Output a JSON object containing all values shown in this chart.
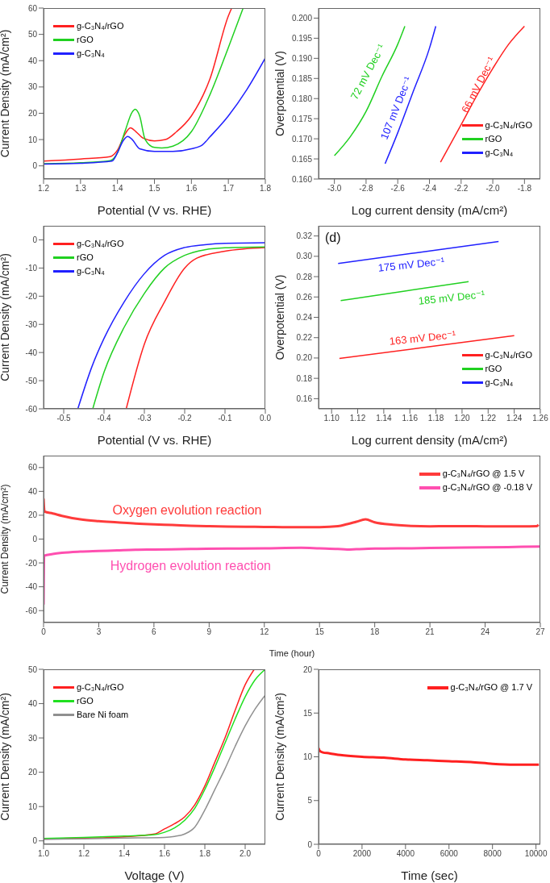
{
  "chart_data": [
    {
      "type": "line",
      "xlabel": "Potential (V vs. RHE)",
      "ylabel": "Current Density (mA/cm²)",
      "xlim": [
        1.2,
        1.8
      ],
      "ylim": [
        -5,
        60
      ],
      "xticks": [
        1.2,
        1.3,
        1.4,
        1.5,
        1.6,
        1.7,
        1.8
      ],
      "yticks": [
        0,
        10,
        20,
        30,
        40,
        50,
        60
      ],
      "legend": "top left",
      "series": [
        {
          "name": "g-C₃N₄/rGO",
          "color": "#ff2020",
          "x": [
            1.2,
            1.3,
            1.38,
            1.4,
            1.42,
            1.435,
            1.45,
            1.47,
            1.5,
            1.53,
            1.56,
            1.6,
            1.65,
            1.7,
            1.709
          ],
          "values": [
            1.8,
            2.6,
            3.5,
            6,
            12,
            14.5,
            13,
            10.5,
            9.5,
            10,
            13,
            19,
            33,
            57,
            60
          ]
        },
        {
          "name": "rGO",
          "color": "#20d020",
          "x": [
            1.2,
            1.3,
            1.38,
            1.4,
            1.42,
            1.44,
            1.448,
            1.46,
            1.475,
            1.5,
            1.52,
            1.55,
            1.6,
            1.65,
            1.7,
            1.74
          ],
          "values": [
            0.8,
            1.2,
            2,
            5,
            13,
            20.5,
            21.5,
            19,
            10,
            7,
            6.8,
            7.5,
            13,
            27,
            45,
            60
          ]
        },
        {
          "name": "g-C₃N₄",
          "color": "#2020ff",
          "x": [
            1.2,
            1.3,
            1.385,
            1.4,
            1.415,
            1.428,
            1.44,
            1.46,
            1.5,
            1.55,
            1.6,
            1.63,
            1.65,
            1.7,
            1.75,
            1.8
          ],
          "values": [
            0.7,
            1,
            1.8,
            5,
            9.5,
            11.2,
            10,
            6.5,
            5.5,
            5.5,
            6.5,
            8,
            11,
            19,
            29,
            41
          ]
        }
      ]
    },
    {
      "type": "line",
      "xlabel": "Log current density (mA/cm²)",
      "ylabel": "Overpotential (V)",
      "xlim": [
        -3.1,
        -1.7
      ],
      "ylim": [
        0.16,
        0.2025
      ],
      "xticks": [
        {
          "value": -3.0,
          "label": "-3.0"
        },
        -2.8,
        -2.6,
        -2.4,
        -2.2,
        {
          "value": -2.0,
          "label": "-2.0"
        },
        -1.8
      ],
      "yticks": [
        {
          "value": 0.16,
          "label": "0.160"
        },
        0.165,
        {
          "value": 0.17,
          "label": "0.170"
        },
        0.175,
        {
          "value": 0.18,
          "label": "0.180"
        },
        0.185,
        {
          "value": 0.19,
          "label": "0.190"
        },
        0.195,
        {
          "value": 0.2,
          "label": "0.200"
        }
      ],
      "legend": "bottom right",
      "annotations": [
        "66 mV Dec⁻¹",
        "72 mV Dec⁻¹",
        "107 mV Dec⁻¹"
      ],
      "series": [
        {
          "name": "g-C₃N₄/rGO",
          "color": "#ff2020",
          "x": [
            -2.33,
            -2.2,
            -2.1,
            -2.0,
            -1.9,
            -1.8
          ],
          "values": [
            0.1642,
            0.1735,
            0.1808,
            0.1875,
            0.1935,
            0.198
          ]
        },
        {
          "name": "rGO",
          "color": "#20d020",
          "x": [
            -3.0,
            -2.9,
            -2.8,
            -2.7,
            -2.6,
            -2.555
          ],
          "values": [
            0.1658,
            0.1705,
            0.1768,
            0.1855,
            0.1935,
            0.198
          ]
        },
        {
          "name": "g-C₃N₄",
          "color": "#2020ff",
          "x": [
            -2.68,
            -2.6,
            -2.5,
            -2.4,
            -2.36
          ],
          "values": [
            0.1638,
            0.1715,
            0.182,
            0.1925,
            0.198
          ]
        }
      ]
    },
    {
      "type": "line",
      "xlabel": "Potential (V vs. RHE)",
      "ylabel": "Current Density (mA/cm²)",
      "xlim": [
        -0.55,
        0
      ],
      "ylim": [
        -60,
        5
      ],
      "xticks": [
        -0.5,
        -0.4,
        -0.3,
        -0.2,
        -0.1,
        {
          "value": 0,
          "label": "0.0"
        }
      ],
      "yticks": [
        -60,
        -50,
        -40,
        -30,
        -20,
        -10,
        0
      ],
      "legend": "top left",
      "series": [
        {
          "name": "g-C₃N₄/rGO",
          "color": "#ff2020",
          "x": [
            -0.345,
            -0.3,
            -0.25,
            -0.2,
            -0.17,
            -0.1,
            0
          ],
          "values": [
            -60,
            -37,
            -22,
            -10,
            -6.5,
            -4,
            -2.7
          ]
        },
        {
          "name": "rGO",
          "color": "#20d020",
          "x": [
            -0.428,
            -0.4,
            -0.35,
            -0.3,
            -0.25,
            -0.2,
            -0.15,
            -0.1,
            0
          ],
          "values": [
            -60,
            -47,
            -31,
            -19,
            -10,
            -5.5,
            -3.5,
            -2.8,
            -2.5
          ]
        },
        {
          "name": "g-C₃N₄",
          "color": "#2020ff",
          "x": [
            -0.465,
            -0.43,
            -0.4,
            -0.35,
            -0.3,
            -0.25,
            -0.2,
            -0.15,
            -0.1,
            0
          ],
          "values": [
            -60,
            -45,
            -35,
            -22,
            -12,
            -5.5,
            -2.7,
            -1.7,
            -1.2,
            -1
          ]
        }
      ]
    },
    {
      "type": "line",
      "xlabel": "Log current density (mA/cm²)",
      "ylabel": "Overpotential (V)",
      "xlim": [
        1.09,
        1.26
      ],
      "ylim": [
        0.15,
        0.33
      ],
      "xticks": [
        {
          "value": 1.1,
          "label": "1.10"
        },
        1.12,
        1.14,
        1.16,
        1.18,
        {
          "value": 1.2,
          "label": "1.20"
        },
        1.22,
        1.24,
        1.26
      ],
      "yticks": [
        0.16,
        0.18,
        {
          "value": 0.2,
          "label": "0.20"
        },
        0.22,
        0.24,
        0.26,
        0.28,
        {
          "value": 0.3,
          "label": "0.30"
        },
        0.32
      ],
      "legend": "bottom right",
      "annotations": [
        "163 mV Dec⁻¹",
        "185 mV Dec⁻¹",
        "175 mV Dec⁻¹",
        "(d)"
      ],
      "series": [
        {
          "name": "g-C₃N₄/rGO",
          "color": "#ff2020",
          "x": [
            1.106,
            1.17,
            1.24
          ],
          "values": [
            0.1995,
            0.2102,
            0.222
          ]
        },
        {
          "name": "rGO",
          "color": "#20d020",
          "x": [
            1.107,
            1.155,
            1.205
          ],
          "values": [
            0.2565,
            0.2656,
            0.275
          ]
        },
        {
          "name": "g-C₃N₄",
          "color": "#2020ff",
          "x": [
            1.105,
            1.165,
            1.228
          ],
          "values": [
            0.293,
            0.3035,
            0.3145
          ]
        }
      ]
    },
    {
      "type": "line",
      "xlabel": "Time (hour)",
      "ylabel": "Current Density (mA/cm²)",
      "xlim": [
        0,
        27
      ],
      "ylim": [
        -70,
        70
      ],
      "xticks": [
        0,
        3,
        6,
        9,
        12,
        15,
        18,
        21,
        24,
        27
      ],
      "yticks": [
        -60,
        -40,
        -20,
        0,
        20,
        40,
        60
      ],
      "legend": "top right",
      "annotations": [
        "Oxygen evolution reaction",
        "Hydrogen evolution reaction"
      ],
      "series": [
        {
          "name": "g-C₃N₄/rGO @ 1.5 V",
          "color": "#ff3b3b",
          "x": [
            0,
            0.05,
            0.5,
            1,
            2,
            3,
            4,
            5,
            6,
            7,
            8,
            9,
            10,
            11,
            12,
            13,
            14,
            15,
            16,
            16.5,
            17,
            17.5,
            18,
            19,
            20,
            21,
            22,
            23,
            24,
            25,
            26,
            26.8,
            26.9
          ],
          "values": [
            34,
            23,
            21.5,
            19.5,
            16.5,
            15,
            14,
            13,
            12.3,
            11.8,
            11.2,
            10.8,
            10.5,
            10.3,
            10.2,
            10,
            9.9,
            10,
            10.8,
            12.5,
            14.5,
            16.5,
            14,
            12,
            11,
            10.7,
            10.8,
            10.8,
            10.7,
            10.7,
            10.6,
            10.8,
            12
          ]
        },
        {
          "name": "g-C₃N₄/rGO @ -0.18 V",
          "color": "#ff4fb0",
          "x": [
            0,
            0.03,
            0.5,
            1,
            2,
            3,
            4,
            5,
            6,
            8,
            10,
            12,
            14,
            15,
            16,
            16.5,
            17,
            18,
            20,
            22,
            24,
            26,
            27
          ],
          "values": [
            -55,
            -14,
            -12.5,
            -11.5,
            -10.5,
            -10,
            -9.5,
            -9,
            -8.8,
            -8.3,
            -8,
            -7.7,
            -7.3,
            -7.8,
            -8.3,
            -8.8,
            -8.5,
            -8,
            -7.7,
            -7.3,
            -7,
            -6.5,
            -6.3
          ]
        }
      ]
    },
    {
      "type": "line",
      "xlabel": "Voltage (V)",
      "ylabel": "Current Density (mA/cm²)",
      "xlim": [
        1.0,
        2.1
      ],
      "ylim": [
        -1,
        50
      ],
      "xticks": [
        {
          "value": 1,
          "label": "1.0"
        },
        1.2,
        1.4,
        1.6,
        1.8,
        {
          "value": 2,
          "label": "2.0"
        }
      ],
      "yticks": [
        0,
        10,
        20,
        30,
        40,
        50
      ],
      "legend": "top left",
      "series": [
        {
          "name": "g-C₃N₄/rGO",
          "color": "#ff2020",
          "x": [
            1.0,
            1.2,
            1.4,
            1.55,
            1.6,
            1.65,
            1.7,
            1.75,
            1.8,
            1.85,
            1.9,
            1.95,
            2.0,
            2.045
          ],
          "values": [
            0.6,
            0.8,
            1.2,
            2,
            3.5,
            5,
            7,
            10.5,
            16,
            23,
            30,
            38,
            45.5,
            50
          ]
        },
        {
          "name": "rGO",
          "color": "#20e020",
          "x": [
            1.0,
            1.2,
            1.4,
            1.55,
            1.6,
            1.65,
            1.7,
            1.75,
            1.8,
            1.85,
            1.9,
            1.95,
            2.0,
            2.05,
            2.1
          ],
          "values": [
            0.7,
            1,
            1.4,
            1.8,
            2.5,
            3.8,
            6,
            9.5,
            15,
            21.5,
            28.5,
            35.5,
            42,
            47,
            50
          ]
        },
        {
          "name": "Bare Ni foam",
          "color": "#909090",
          "x": [
            1.0,
            1.2,
            1.4,
            1.6,
            1.65,
            1.7,
            1.75,
            1.8,
            1.85,
            1.9,
            1.95,
            2.0,
            2.05,
            2.1
          ],
          "values": [
            0.4,
            0.6,
            0.8,
            1,
            1.3,
            2,
            4,
            9,
            15,
            21,
            27.5,
            33.5,
            38.5,
            42.5
          ]
        }
      ]
    },
    {
      "type": "line",
      "xlabel": "Time (sec)",
      "ylabel": "Current Density (mA/cm²)",
      "xlim": [
        0,
        10200
      ],
      "ylim": [
        0,
        20
      ],
      "xticks": [
        0,
        2000,
        4000,
        6000,
        8000,
        10000
      ],
      "yticks": [
        0,
        5,
        10,
        15,
        20
      ],
      "legend": "top right",
      "series": [
        {
          "name": "g-C₃N₄/rGO @ 1.7 V",
          "color": "#ff2020",
          "x": [
            0,
            50,
            200,
            500,
            1000,
            2000,
            3000,
            4000,
            5000,
            6000,
            7000,
            8000,
            9000,
            10135
          ],
          "values": [
            11,
            10.7,
            10.5,
            10.4,
            10.2,
            10,
            9.9,
            9.7,
            9.6,
            9.5,
            9.4,
            9.2,
            9.1,
            9.1
          ]
        }
      ]
    }
  ]
}
